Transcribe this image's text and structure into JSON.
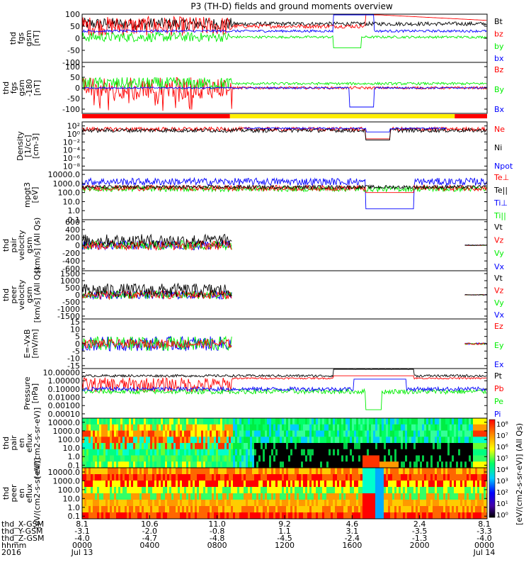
{
  "title": "P3 (TH-D) fields and ground moments overview",
  "colors": {
    "black": "#000000",
    "red": "#ff0000",
    "green": "#00ee00",
    "blue": "#0000ff",
    "yellow": "#ffee00"
  },
  "mode_bar": [
    {
      "from": 0,
      "to": 0.365,
      "color": "red"
    },
    {
      "from": 0.365,
      "to": 0.92,
      "color": "yellow"
    },
    {
      "from": 0.92,
      "to": 1.0,
      "color": "red"
    }
  ],
  "panels": [
    {
      "id": "fgs_gsm",
      "ylabel": [
        "thd",
        "fgs",
        "gsm",
        "[nT]"
      ],
      "scale": "linear",
      "ylim": [
        -100,
        100
      ],
      "ticks": [
        "100",
        "50",
        "0",
        "-50",
        "-100"
      ],
      "tick_values": [
        100,
        50,
        0,
        -50,
        -100
      ],
      "legend": [
        {
          "label": "Bt",
          "color": "black"
        },
        {
          "label": "bz",
          "color": "red"
        },
        {
          "label": "by",
          "color": "green"
        },
        {
          "label": "bx",
          "color": "blue"
        }
      ]
    },
    {
      "id": "fgs_gse",
      "ylabel": [
        "thd",
        "fgs",
        "gsm",
        "-180",
        "[nT]"
      ],
      "scale": "linear",
      "ylim": [
        -120,
        120
      ],
      "ticks": [
        "100",
        "50",
        "0",
        "-50",
        "-100"
      ],
      "tick_values": [
        100,
        50,
        0,
        -50,
        -100
      ],
      "legend": [
        {
          "label": "Bz",
          "color": "red"
        },
        {
          "label": "By",
          "color": "green"
        },
        {
          "label": "Bx",
          "color": "blue"
        }
      ]
    },
    {
      "id": "density",
      "ylabel": [
        "Density",
        "[1/cc]",
        "[cm-3]"
      ],
      "scale": "log",
      "ylim": [
        1e-09,
        1000.0
      ],
      "ticks": [
        "10²",
        "10⁰",
        "10⁻²",
        "10⁻⁴",
        "10⁻⁶",
        "10⁻⁸"
      ],
      "tick_values": [
        2,
        0,
        -2,
        -4,
        -6,
        -8
      ],
      "legend": [
        {
          "label": "Ne",
          "color": "red"
        },
        {
          "label": "Ni",
          "color": "black"
        },
        {
          "label": "Npot",
          "color": "blue"
        }
      ]
    },
    {
      "id": "temperature",
      "ylabel": [
        "mpgt3",
        "[eV]"
      ],
      "scale": "log",
      "ylim": [
        0.1,
        30000
      ],
      "ticks": [
        "10000.0",
        "1000.0",
        "100.0",
        "10.0",
        "1.0",
        "0.1"
      ],
      "tick_values": [
        4,
        3,
        2,
        1,
        0,
        -1
      ],
      "legend": [
        {
          "label": "Te⊥",
          "color": "red"
        },
        {
          "label": "Te||",
          "color": "black"
        },
        {
          "label": "Ti⊥",
          "color": "blue"
        },
        {
          "label": "Ti||",
          "color": "green"
        }
      ]
    },
    {
      "id": "ion_velocity",
      "ylabel": [
        "thd",
        "pair",
        "velocity",
        "gsm",
        "[km/s] (All Qs)"
      ],
      "scale": "linear",
      "ylim": [
        -650,
        650
      ],
      "ticks": [
        "600",
        "400",
        "200",
        "0",
        "-200",
        "-400",
        "-600"
      ],
      "tick_values": [
        600,
        400,
        200,
        0,
        -200,
        -400,
        -600
      ],
      "legend": [
        {
          "label": "Vt",
          "color": "black"
        },
        {
          "label": "Vz",
          "color": "red"
        },
        {
          "label": "Vy",
          "color": "green"
        },
        {
          "label": "Vx",
          "color": "blue"
        }
      ]
    },
    {
      "id": "electron_velocity",
      "ylabel": [
        "thd",
        "peer",
        "velocity",
        "gsm",
        "[km/s] (All Qs)"
      ],
      "scale": "linear",
      "ylim": [
        -1700,
        1700
      ],
      "ticks": [
        "1500",
        "1000",
        "500",
        "0",
        "-500",
        "-1000",
        "-1500"
      ],
      "tick_values": [
        1500,
        1000,
        500,
        0,
        -500,
        -1000,
        -1500
      ],
      "legend": [
        {
          "label": "Vt",
          "color": "black"
        },
        {
          "label": "Vz",
          "color": "red"
        },
        {
          "label": "Vy",
          "color": "green"
        },
        {
          "label": "Vx",
          "color": "blue"
        }
      ]
    },
    {
      "id": "efield",
      "ylabel": [
        "E=-VxB",
        "[mV/m]"
      ],
      "scale": "linear",
      "ylim": [
        -17,
        17
      ],
      "ticks": [
        "15",
        "10",
        "5",
        "0",
        "-5",
        "-10",
        "-15"
      ],
      "tick_values": [
        15,
        10,
        5,
        0,
        -5,
        -10,
        -15
      ],
      "legend": [
        {
          "label": "Ez",
          "color": "red"
        },
        {
          "label": "Ey",
          "color": "green"
        },
        {
          "label": "Ex",
          "color": "blue"
        }
      ]
    },
    {
      "id": "pressure",
      "ylabel": [
        "Pressure",
        "[nPa]"
      ],
      "scale": "log",
      "ylim": [
        3e-05,
        30
      ],
      "ticks": [
        "10.00000",
        "1.00000",
        "0.10000",
        "0.01000",
        "0.00100",
        "0.00010"
      ],
      "tick_values": [
        1,
        0,
        -1,
        -2,
        -3,
        -4
      ],
      "legend": [
        {
          "label": "Pt",
          "color": "black"
        },
        {
          "label": "Pb",
          "color": "red"
        },
        {
          "label": "Pe",
          "color": "green"
        },
        {
          "label": "Pi",
          "color": "blue"
        }
      ]
    },
    {
      "id": "ion_spectrogram",
      "ylabel": [
        "thd",
        "pair",
        "en",
        "eflux",
        "[eV/(cm2-s-sr-eV)]"
      ],
      "scale": "log",
      "ylim": [
        0.05,
        30000
      ],
      "ticks": [
        "10000.0",
        "1000.0",
        "100.0",
        "10.0",
        "1.0",
        "0.1"
      ],
      "tick_values": [
        4,
        3,
        2,
        1,
        0,
        -1
      ]
    },
    {
      "id": "electron_spectrogram",
      "ylabel": [
        "thd",
        "peer",
        "en",
        "eflux",
        "[eV/(cm2-s-sr-eV)]"
      ],
      "scale": "log",
      "ylim": [
        0.05,
        30000
      ],
      "ticks": [
        "10000.0",
        "1000.0",
        "100.0",
        "10.0",
        "1.0",
        "0.1"
      ],
      "tick_values": [
        4,
        3,
        2,
        1,
        0,
        -1
      ]
    }
  ],
  "colorbar": {
    "label": "[eV/(cm2-s-sr-eV)] (All Qs)",
    "ticks": [
      "10⁸",
      "10⁷",
      "10⁶",
      "10⁵",
      "10⁴",
      "10³",
      "10²",
      "10¹",
      "10⁰"
    ]
  },
  "time_axis": {
    "row_labels": [
      "thd_X-GSM",
      "thd_Y-GSM",
      "thd_Z-GSM",
      "hhmm",
      "2016"
    ],
    "ticks": [
      {
        "x": "8.1",
        "y": "-3.1",
        "z": "-4.0",
        "hhmm": "0000",
        "date": "Jul 13"
      },
      {
        "x": "10.6",
        "y": "-2.0",
        "z": "-4.7",
        "hhmm": "0400",
        "date": ""
      },
      {
        "x": "11.0",
        "y": "-0.8",
        "z": "-4.8",
        "hhmm": "0800",
        "date": ""
      },
      {
        "x": "9.2",
        "y": "1.1",
        "z": "-4.5",
        "hhmm": "1200",
        "date": ""
      },
      {
        "x": "4.6",
        "y": "3.1",
        "z": "-2.4",
        "hhmm": "1600",
        "date": ""
      },
      {
        "x": "2.4",
        "y": "-3.5",
        "z": "-1.3",
        "hhmm": "2000",
        "date": ""
      },
      {
        "x": "8.1",
        "y": "-3.3",
        "z": "-4.0",
        "hhmm": "0000",
        "date": "Jul 14"
      }
    ],
    "extra_z": "-4.0"
  }
}
